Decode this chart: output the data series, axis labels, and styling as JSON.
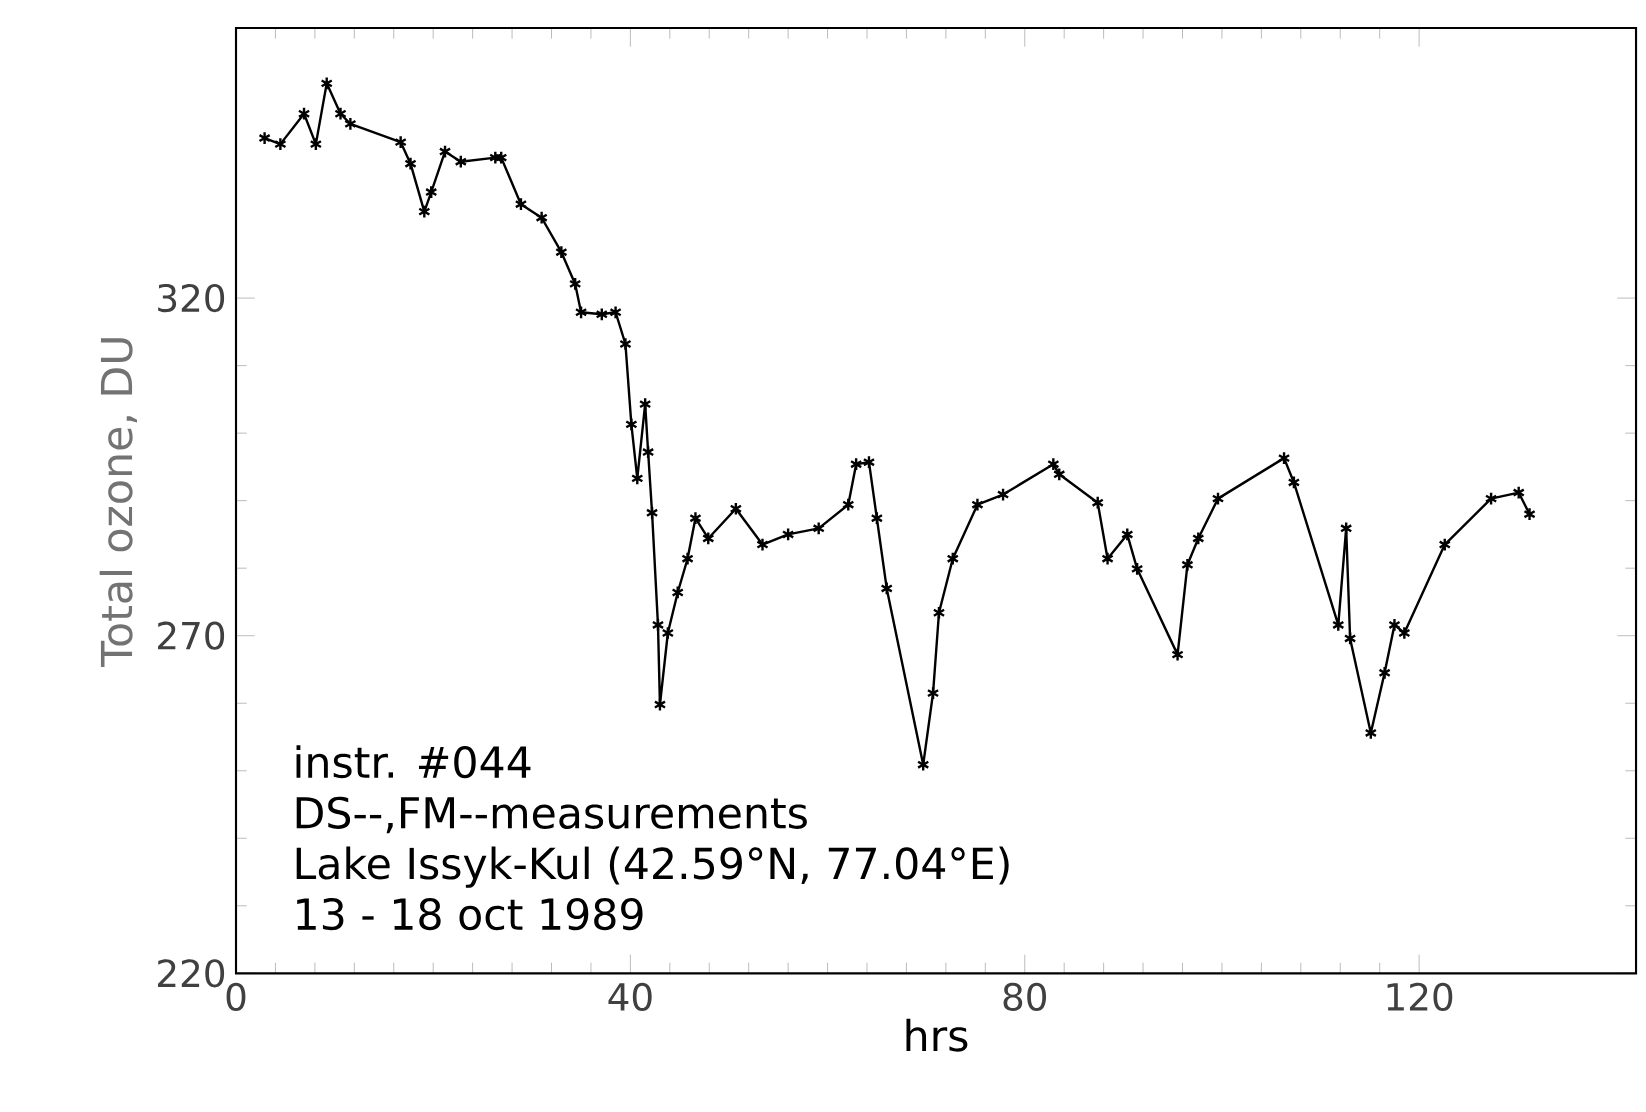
{
  "chart_data": {
    "type": "line",
    "xlabel": "hrs",
    "ylabel": "Total ozone, DU",
    "xlim": [
      0,
      142
    ],
    "ylim": [
      220,
      360
    ],
    "xticks": [
      0,
      40,
      80,
      120
    ],
    "yticks": [
      220,
      270,
      320
    ],
    "marker": "cross",
    "line_style": "solid",
    "grid": false,
    "annotations": [
      "instr. #044",
      "DS--,FM--measurements",
      "Lake Issyk-Kul (42.59°N, 77.04°E)",
      "13 - 18   oct 1989"
    ],
    "series": [
      {
        "color": "#000000",
        "x": [
          2.9,
          4.5,
          6.9,
          8.1,
          9.2,
          10.6,
          11.6,
          16.7,
          17.7,
          19.1,
          19.8,
          21.2,
          22.8,
          26.3,
          26.9,
          28.9,
          31.0,
          33.0,
          34.4,
          35.0,
          37.1,
          38.5,
          39.5,
          40.1,
          40.7,
          41.5,
          41.8,
          42.2,
          42.8,
          43.0,
          43.8,
          44.8,
          45.8,
          46.6,
          47.9,
          50.7,
          53.4,
          56.0,
          59.1,
          62.1,
          62.9,
          64.2,
          65.0,
          66.0,
          69.7,
          70.7,
          71.3,
          72.7,
          75.2,
          77.8,
          82.9,
          83.5,
          87.4,
          88.4,
          90.4,
          91.4,
          95.5,
          96.5,
          97.6,
          99.6,
          106.3,
          107.3,
          111.8,
          112.6,
          113.0,
          115.1,
          116.5,
          117.5,
          118.5,
          122.6,
          127.3,
          130.1,
          131.2
        ],
        "values": [
          343.7,
          342.8,
          347.3,
          342.8,
          351.8,
          347.3,
          345.8,
          343.1,
          339.9,
          332.8,
          335.7,
          341.7,
          340.2,
          340.8,
          340.8,
          333.9,
          331.9,
          326.8,
          322.1,
          317.9,
          317.6,
          317.9,
          313.2,
          301.3,
          293.3,
          304.3,
          297.2,
          288.2,
          271.6,
          259.8,
          270.4,
          276.4,
          281.4,
          287.4,
          284.4,
          288.8,
          283.5,
          285.0,
          285.9,
          289.4,
          295.4,
          295.7,
          287.4,
          277.0,
          250.9,
          261.5,
          273.4,
          281.4,
          289.4,
          290.9,
          295.4,
          293.9,
          289.7,
          281.4,
          285.0,
          279.9,
          267.2,
          280.5,
          284.4,
          290.3,
          296.3,
          292.7,
          271.6,
          285.9,
          269.6,
          255.6,
          264.5,
          271.6,
          270.4,
          283.5,
          290.3,
          291.2,
          288.0
        ]
      }
    ]
  }
}
